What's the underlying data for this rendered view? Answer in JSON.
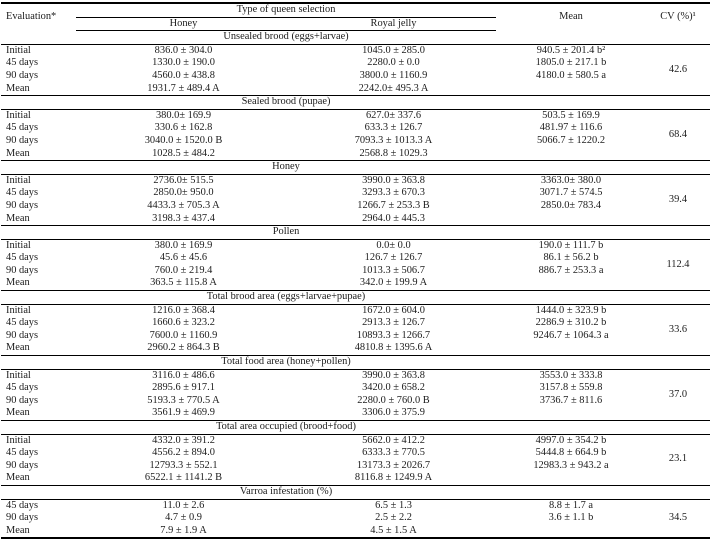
{
  "page": {
    "background": "#ffffff",
    "text_color": "#1c1c1c",
    "rule_color": "#000000"
  },
  "table": {
    "headers": {
      "evaluation": "Evaluation*",
      "queen_selection": "Type of queen selection",
      "honey": "Honey",
      "royal_jelly": "Royal jelly",
      "mean": "Mean",
      "cv": "CV (%)¹"
    },
    "sections": [
      {
        "title": "Unsealed brood (eggs+larvae)",
        "cv": "42.6",
        "rows": [
          {
            "label": "Initial",
            "honey": "836.0 ± 304.0",
            "royal_jelly": "1045.0 ± 285.0",
            "mean": "940.5 ± 201.4 b²"
          },
          {
            "label": "45 days",
            "honey": "1330.0 ± 190.0",
            "royal_jelly": "2280.0 ± 0.0",
            "mean": "1805.0 ± 217.1 b"
          },
          {
            "label": "90 days",
            "honey": "4560.0 ± 438.8",
            "royal_jelly": "3800.0 ± 1160.9",
            "mean": "4180.0 ± 580.5 a"
          },
          {
            "label": "Mean",
            "honey": "1931.7 ± 489.4 A",
            "royal_jelly": "2242.0± 495.3 A",
            "mean": ""
          }
        ]
      },
      {
        "title": "Sealed brood (pupae)",
        "cv": "68.4",
        "rows": [
          {
            "label": "Initial",
            "honey": "380.0± 169.9",
            "royal_jelly": "627.0± 337.6",
            "mean": "503.5 ± 169.9"
          },
          {
            "label": "45 days",
            "honey": "330.6 ± 162.8",
            "royal_jelly": "633.3 ± 126.7",
            "mean": "481.97 ± 116.6"
          },
          {
            "label": "90 days",
            "honey": "3040.0 ± 1520.0 B",
            "royal_jelly": "7093.3 ± 1013.3 A",
            "mean": "5066.7 ± 1220.2"
          },
          {
            "label": "Mean",
            "honey": "1028.5 ± 484.2",
            "royal_jelly": "2568.8 ± 1029.3",
            "mean": ""
          }
        ]
      },
      {
        "title": "Honey",
        "cv": "39.4",
        "rows": [
          {
            "label": "Initial",
            "honey": "2736.0± 515.5",
            "royal_jelly": "3990.0 ± 363.8",
            "mean": "3363.0± 380.0"
          },
          {
            "label": "45 days",
            "honey": "2850.0± 950.0",
            "royal_jelly": "3293.3 ± 670.3",
            "mean": "3071.7 ± 574.5"
          },
          {
            "label": "90 days",
            "honey": "4433.3 ± 705.3 A",
            "royal_jelly": "1266.7 ± 253.3 B",
            "mean": "2850.0± 783.4"
          },
          {
            "label": "Mean",
            "honey": "3198.3 ± 437.4",
            "royal_jelly": "2964.0 ± 445.3",
            "mean": ""
          }
        ]
      },
      {
        "title": "Pollen",
        "cv": "112.4",
        "rows": [
          {
            "label": "Initial",
            "honey": "380.0 ± 169.9",
            "royal_jelly": "0.0± 0.0",
            "mean": "190.0 ± 111.7 b"
          },
          {
            "label": "45 days",
            "honey": "45.6 ± 45.6",
            "royal_jelly": "126.7 ± 126.7",
            "mean": "86.1 ± 56.2 b"
          },
          {
            "label": "90 days",
            "honey": "760.0 ± 219.4",
            "royal_jelly": "1013.3 ± 506.7",
            "mean": "886.7 ± 253.3 a"
          },
          {
            "label": "Mean",
            "honey": "363.5 ± 115.8 A",
            "royal_jelly": "342.0 ± 199.9 A",
            "mean": ""
          }
        ]
      },
      {
        "title": "Total brood area (eggs+larvae+pupae)",
        "cv": "33.6",
        "rows": [
          {
            "label": "Initial",
            "honey": "1216.0 ± 368.4",
            "royal_jelly": "1672.0 ± 604.0",
            "mean": "1444.0 ± 323.9 b"
          },
          {
            "label": "45 days",
            "honey": "1660.6 ± 323.2",
            "royal_jelly": "2913.3 ± 126.7",
            "mean": "2286.9 ± 310.2 b"
          },
          {
            "label": "90 days",
            "honey": "7600.0 ± 1160.9",
            "royal_jelly": "10893.3 ± 1266.7",
            "mean": "9246.7 ± 1064.3 a"
          },
          {
            "label": "Mean",
            "honey": "2960.2 ± 864.3 B",
            "royal_jelly": "4810.8 ± 1395.6 A",
            "mean": ""
          }
        ]
      },
      {
        "title": "Total food area (honey+pollen)",
        "cv": "37.0",
        "rows": [
          {
            "label": "Initial",
            "honey": "3116.0 ± 486.6",
            "royal_jelly": "3990.0 ± 363.8",
            "mean": "3553.0 ± 333.8"
          },
          {
            "label": "45 days",
            "honey": "2895.6 ± 917.1",
            "royal_jelly": "3420.0 ± 658.2",
            "mean": "3157.8 ± 559.8"
          },
          {
            "label": "90 days",
            "honey": "5193.3 ± 770.5 A",
            "royal_jelly": "2280.0 ± 760.0 B",
            "mean": "3736.7 ± 811.6"
          },
          {
            "label": "Mean",
            "honey": "3561.9 ± 469.9",
            "royal_jelly": "3306.0 ± 375.9",
            "mean": ""
          }
        ]
      },
      {
        "title": "Total area occupied (brood+food)",
        "cv": "23.1",
        "rows": [
          {
            "label": "Initial",
            "honey": "4332.0 ± 391.2",
            "royal_jelly": "5662.0 ± 412.2",
            "mean": "4997.0 ± 354.2 b"
          },
          {
            "label": "45 days",
            "honey": "4556.2 ± 894.0",
            "royal_jelly": "6333.3 ± 770.5",
            "mean": "5444.8 ± 664.9 b"
          },
          {
            "label": "90 days",
            "honey": "12793.3 ± 552.1",
            "royal_jelly": "13173.3 ± 2026.7",
            "mean": "12983.3 ± 943.2 a"
          },
          {
            "label": "Mean",
            "honey": "6522.1 ± 1141.2 B",
            "royal_jelly": "8116.8 ± 1249.9 A",
            "mean": ""
          }
        ]
      },
      {
        "title": "Varroa infestation (%)",
        "cv": "34.5",
        "rows": [
          {
            "label": "45 days",
            "honey": "11.0 ± 2.6",
            "royal_jelly": "6.5 ± 1.3",
            "mean": "8.8 ± 1.7 a"
          },
          {
            "label": "90 days",
            "honey": "4.7 ± 0.9",
            "royal_jelly": "2.5 ± 2.2",
            "mean": "3.6 ± 1.1 b"
          },
          {
            "label": "Mean",
            "honey": "7.9 ± 1.9 A",
            "royal_jelly": "4.5 ± 1.5 A",
            "mean": ""
          }
        ]
      }
    ]
  }
}
